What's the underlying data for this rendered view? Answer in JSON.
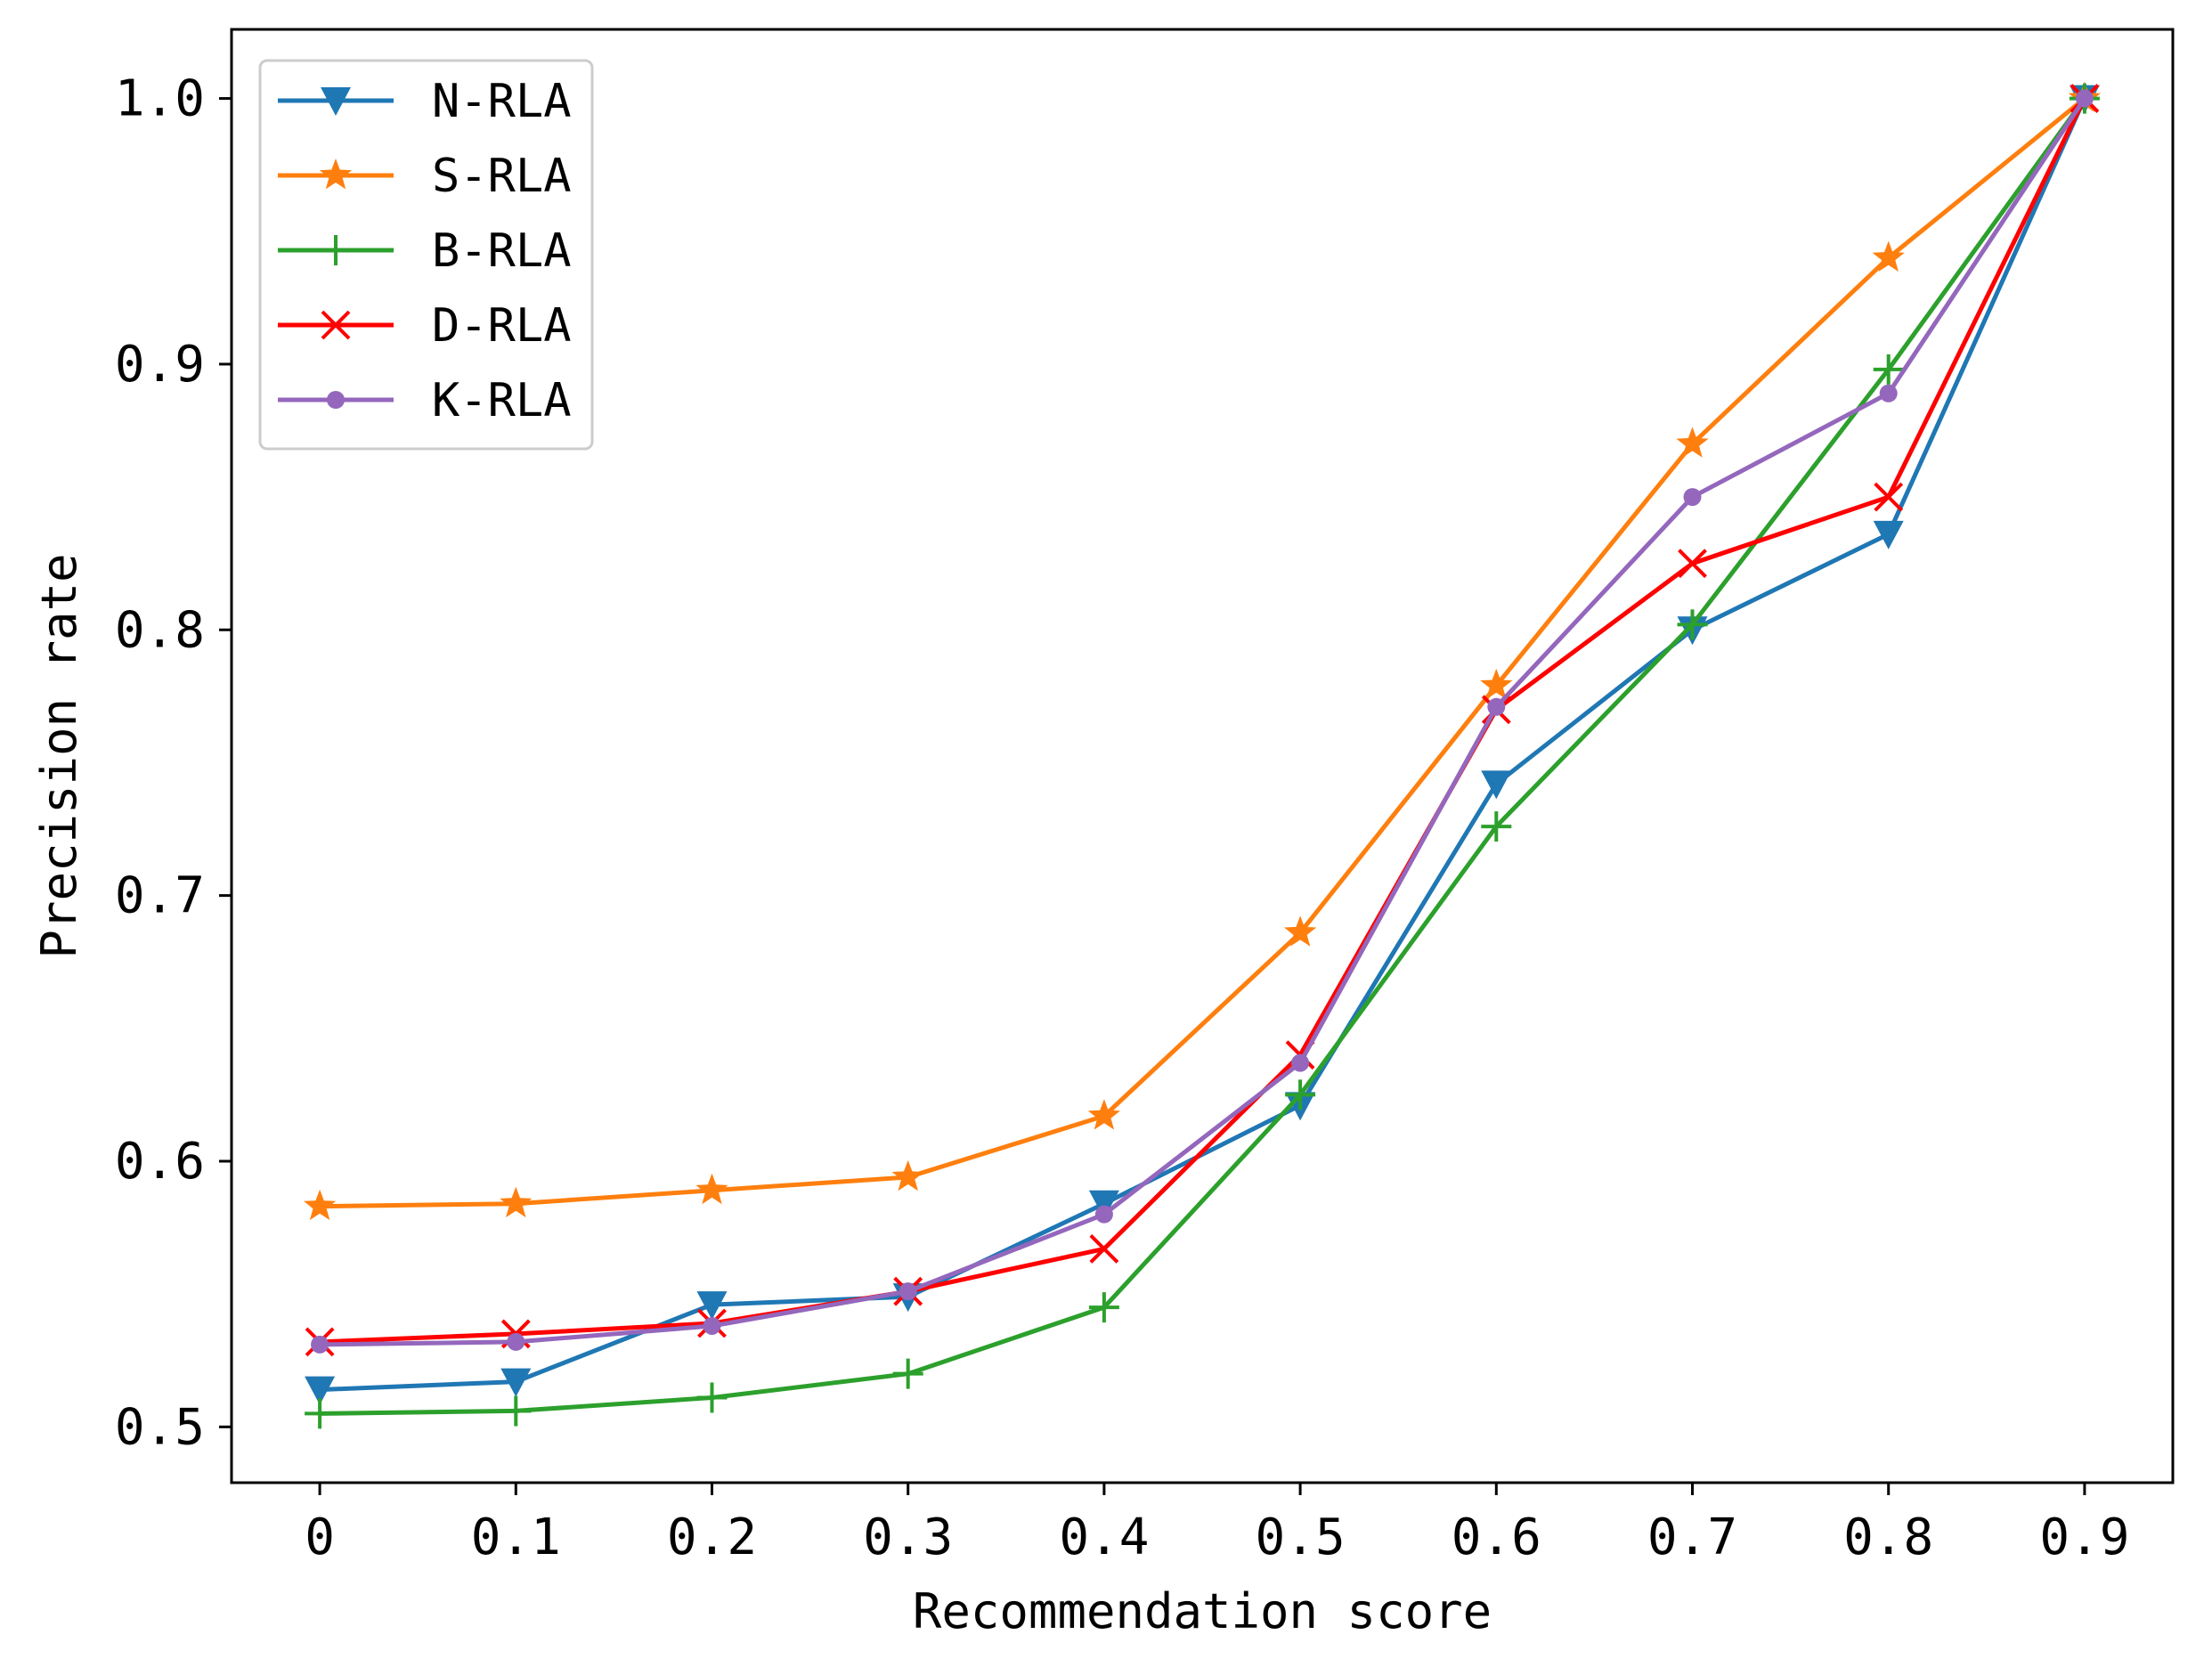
{
  "chart_data": {
    "type": "line",
    "title": "",
    "xlabel": "Recommendation score",
    "ylabel": "Precision rate",
    "x": [
      0,
      0.1,
      0.2,
      0.3,
      0.4,
      0.5,
      0.6,
      0.7,
      0.8,
      0.9
    ],
    "xtick_labels": [
      "0",
      "0.1",
      "0.2",
      "0.3",
      "0.4",
      "0.5",
      "0.6",
      "0.7",
      "0.8",
      "0.9"
    ],
    "yticks": [
      0.5,
      0.6,
      0.7,
      0.8,
      0.9,
      1.0
    ],
    "ytick_labels": [
      "0.5",
      "0.6",
      "0.7",
      "0.8",
      "0.9",
      "1.0"
    ],
    "xlim": [
      -0.045,
      0.945
    ],
    "ylim": [
      0.479,
      1.026
    ],
    "grid": false,
    "legend_position": "top-left",
    "series": [
      {
        "name": "N-RLA",
        "color": "#1f77b4",
        "marker": "triangle-down",
        "values": [
          0.514,
          0.517,
          0.546,
          0.549,
          0.584,
          0.621,
          0.742,
          0.8,
          0.836,
          1.0
        ]
      },
      {
        "name": "S-RLA",
        "color": "#ff7f0e",
        "marker": "star",
        "values": [
          0.583,
          0.584,
          0.589,
          0.594,
          0.617,
          0.686,
          0.779,
          0.87,
          0.94,
          1.0
        ]
      },
      {
        "name": "B-RLA",
        "color": "#2ca02c",
        "marker": "plus",
        "values": [
          0.505,
          0.506,
          0.511,
          0.52,
          0.545,
          0.625,
          0.726,
          0.802,
          0.898,
          1.0
        ]
      },
      {
        "name": "D-RLA",
        "color": "#ff0000",
        "marker": "x",
        "values": [
          0.532,
          0.535,
          0.539,
          0.551,
          0.567,
          0.64,
          0.77,
          0.825,
          0.85,
          1.0
        ]
      },
      {
        "name": "K-RLA",
        "color": "#9467bd",
        "marker": "circle",
        "values": [
          0.531,
          0.532,
          0.538,
          0.551,
          0.58,
          0.637,
          0.771,
          0.85,
          0.889,
          1.0
        ]
      }
    ]
  }
}
